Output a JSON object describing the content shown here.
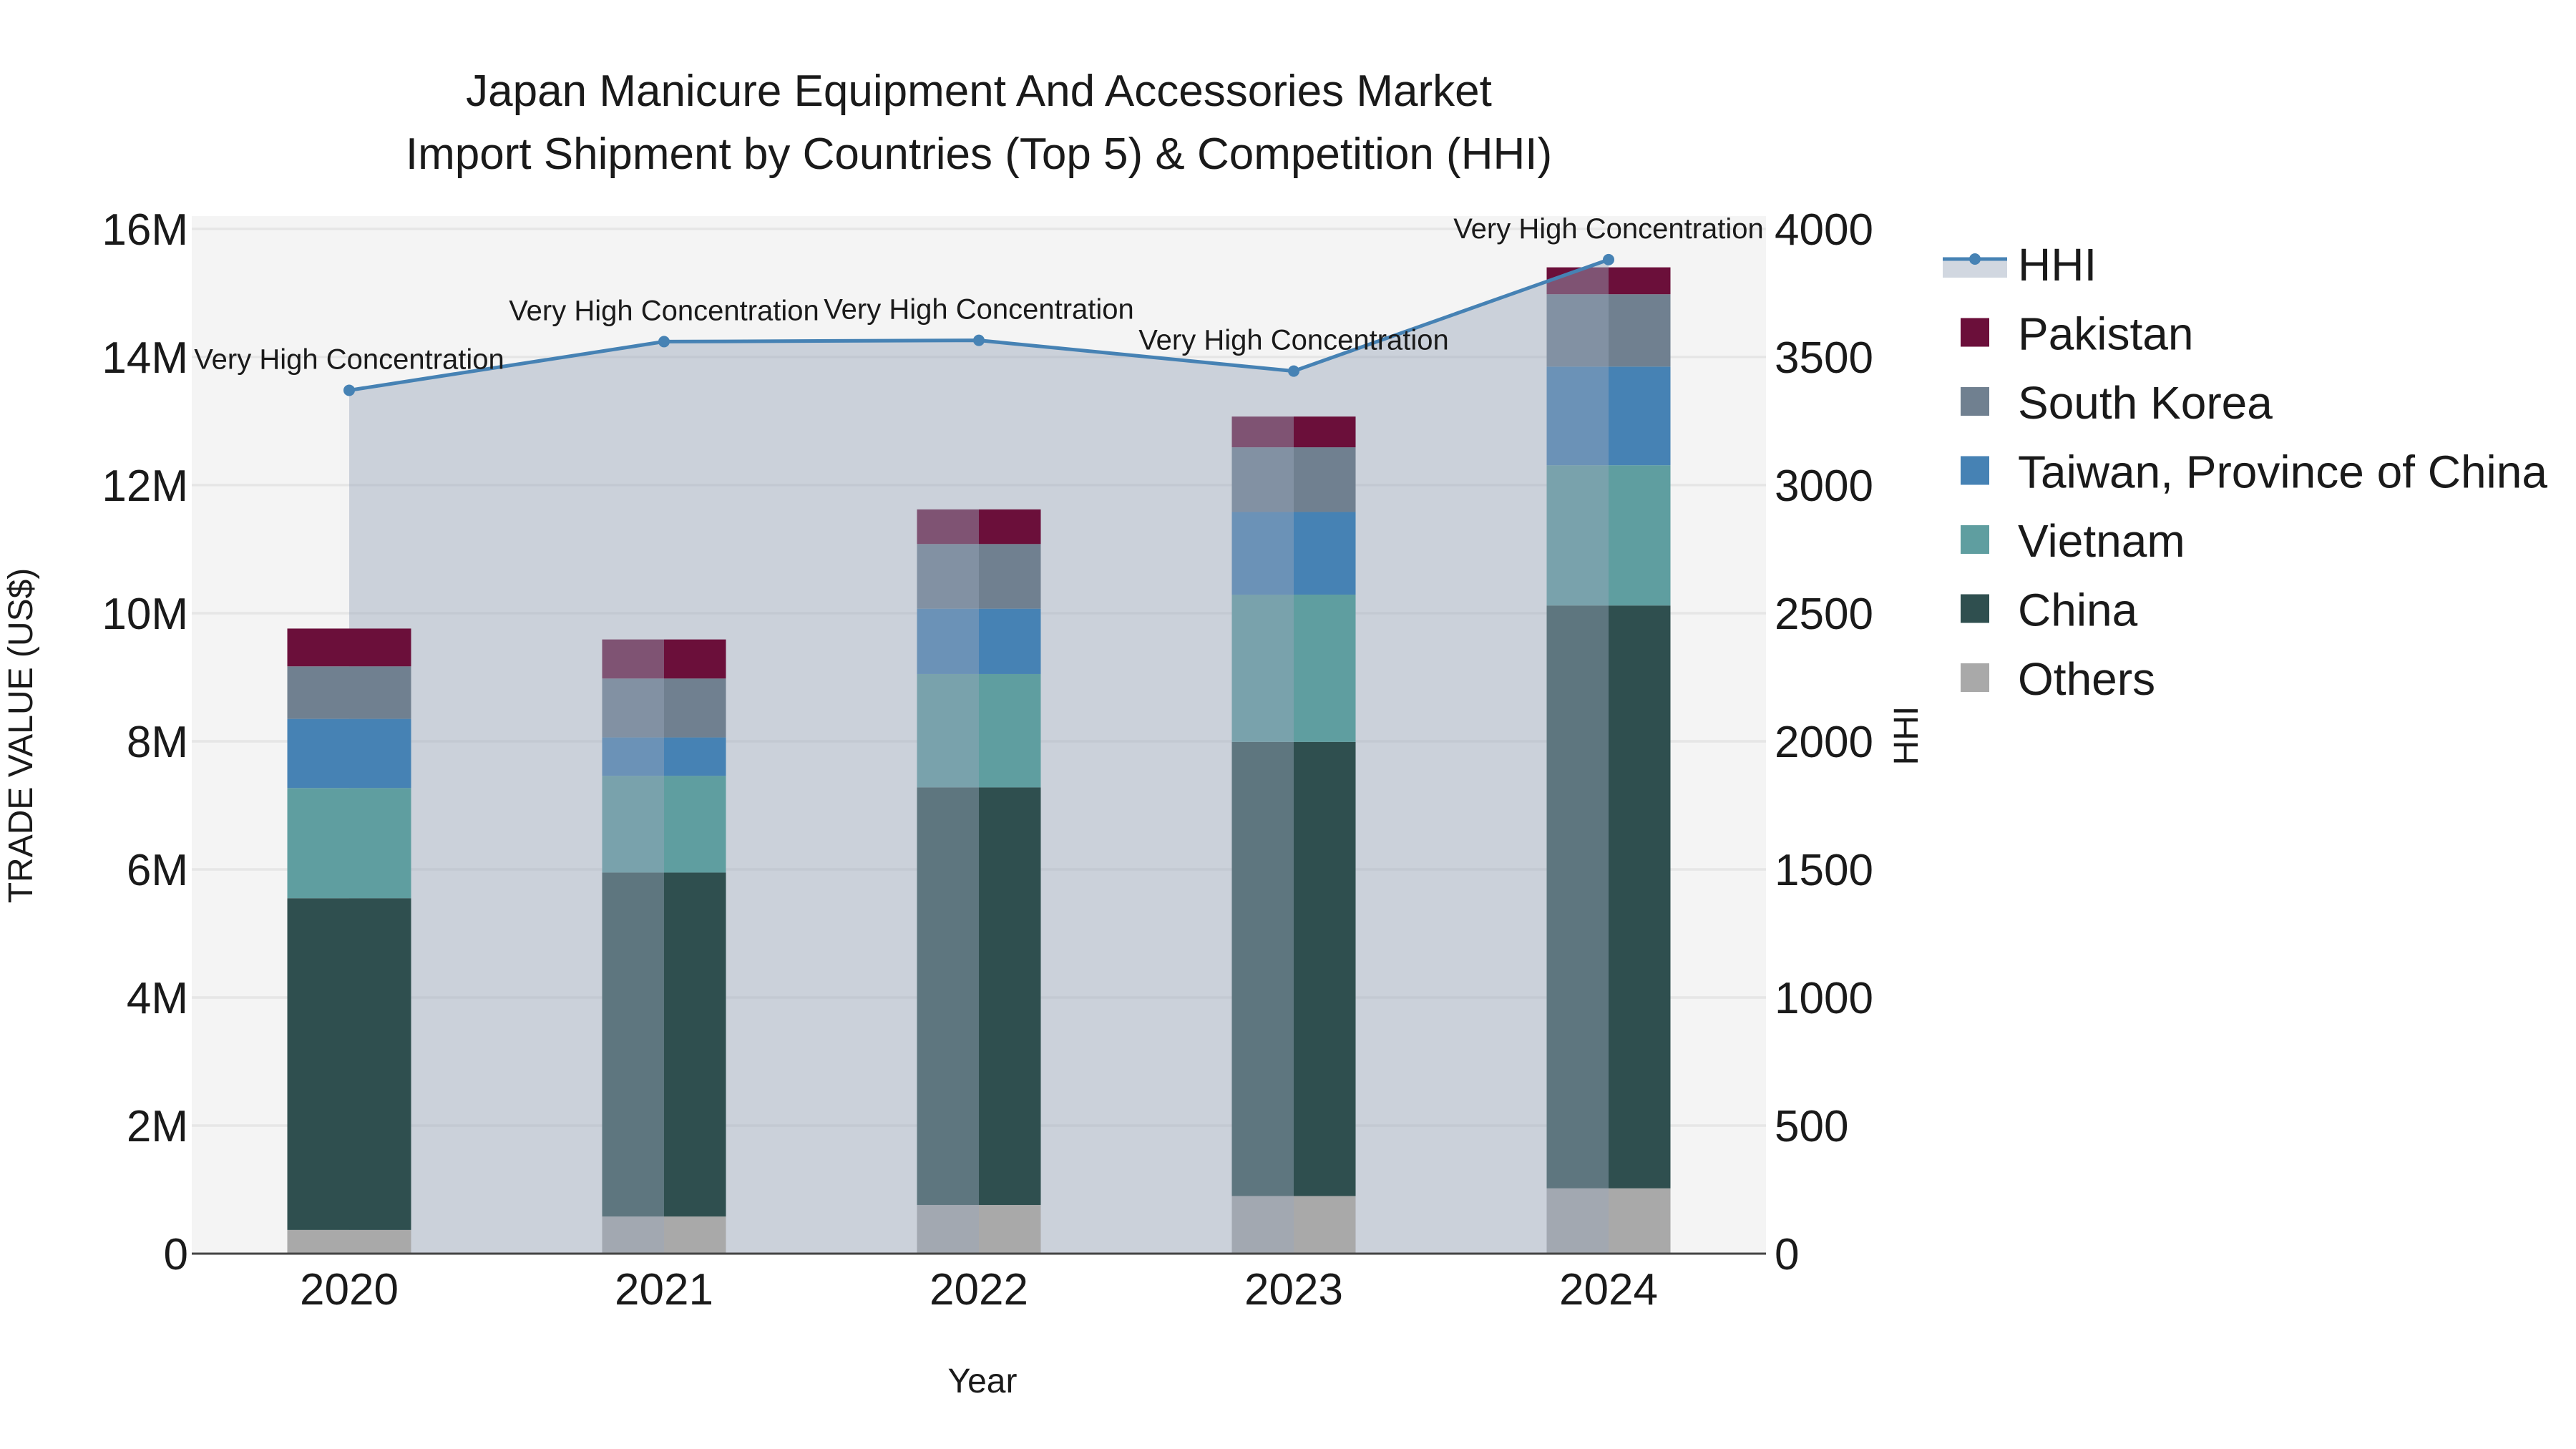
{
  "chart_data": {
    "type": "bar",
    "stacked": true,
    "title_lines": [
      "Japan Manicure Equipment And Accessories Market",
      "Import Shipment by Countries (Top 5) & Competition (HHI)"
    ],
    "xlabel": "Year",
    "ylabel": "TRADE VALUE (US$)",
    "y2label": "HHI",
    "categories": [
      "2020",
      "2021",
      "2022",
      "2023",
      "2024"
    ],
    "ylim": [
      0,
      16200000
    ],
    "y_ticks": [
      0,
      2000000,
      4000000,
      6000000,
      8000000,
      10000000,
      12000000,
      14000000,
      16000000
    ],
    "y_tick_labels": [
      "0",
      "2M",
      "4M",
      "6M",
      "8M",
      "10M",
      "12M",
      "14M",
      "16M"
    ],
    "y2lim": [
      0,
      4050
    ],
    "y2_ticks": [
      0,
      500,
      1000,
      1500,
      2000,
      2500,
      3000,
      3500,
      4000
    ],
    "y2_tick_labels": [
      "0",
      "500",
      "1000",
      "1500",
      "2000",
      "2500",
      "3000",
      "3500",
      "4000"
    ],
    "series": [
      {
        "name": "Others",
        "color": "#a9a9a9",
        "values": [
          370000,
          580000,
          760000,
          900000,
          1020000
        ]
      },
      {
        "name": "China",
        "color": "#2f4f4f",
        "values": [
          5180000,
          5370000,
          6520000,
          7090000,
          9100000
        ]
      },
      {
        "name": "Vietnam",
        "color": "#5f9ea0",
        "values": [
          1720000,
          1510000,
          1770000,
          2300000,
          2190000
        ]
      },
      {
        "name": "Taiwan, Province of China",
        "color": "#4682b4",
        "values": [
          1080000,
          600000,
          1020000,
          1290000,
          1540000
        ]
      },
      {
        "name": "South Korea",
        "color": "#708090",
        "values": [
          820000,
          920000,
          1010000,
          1010000,
          1130000
        ]
      },
      {
        "name": "Pakistan",
        "color": "#6b0f3a",
        "values": [
          590000,
          610000,
          540000,
          480000,
          420000
        ]
      }
    ],
    "hhi": {
      "name": "HHI",
      "color": "#4682b4",
      "values": [
        3370,
        3560,
        3565,
        3445,
        3880
      ],
      "labels": [
        "Very High Concentration",
        "Very High Concentration",
        "Very High Concentration",
        "Very High Concentration",
        "Very High Concentration"
      ]
    },
    "legend_order": [
      "HHI",
      "Pakistan",
      "South Korea",
      "Taiwan, Province of China",
      "Vietnam",
      "China",
      "Others"
    ],
    "legend_position": "right"
  }
}
